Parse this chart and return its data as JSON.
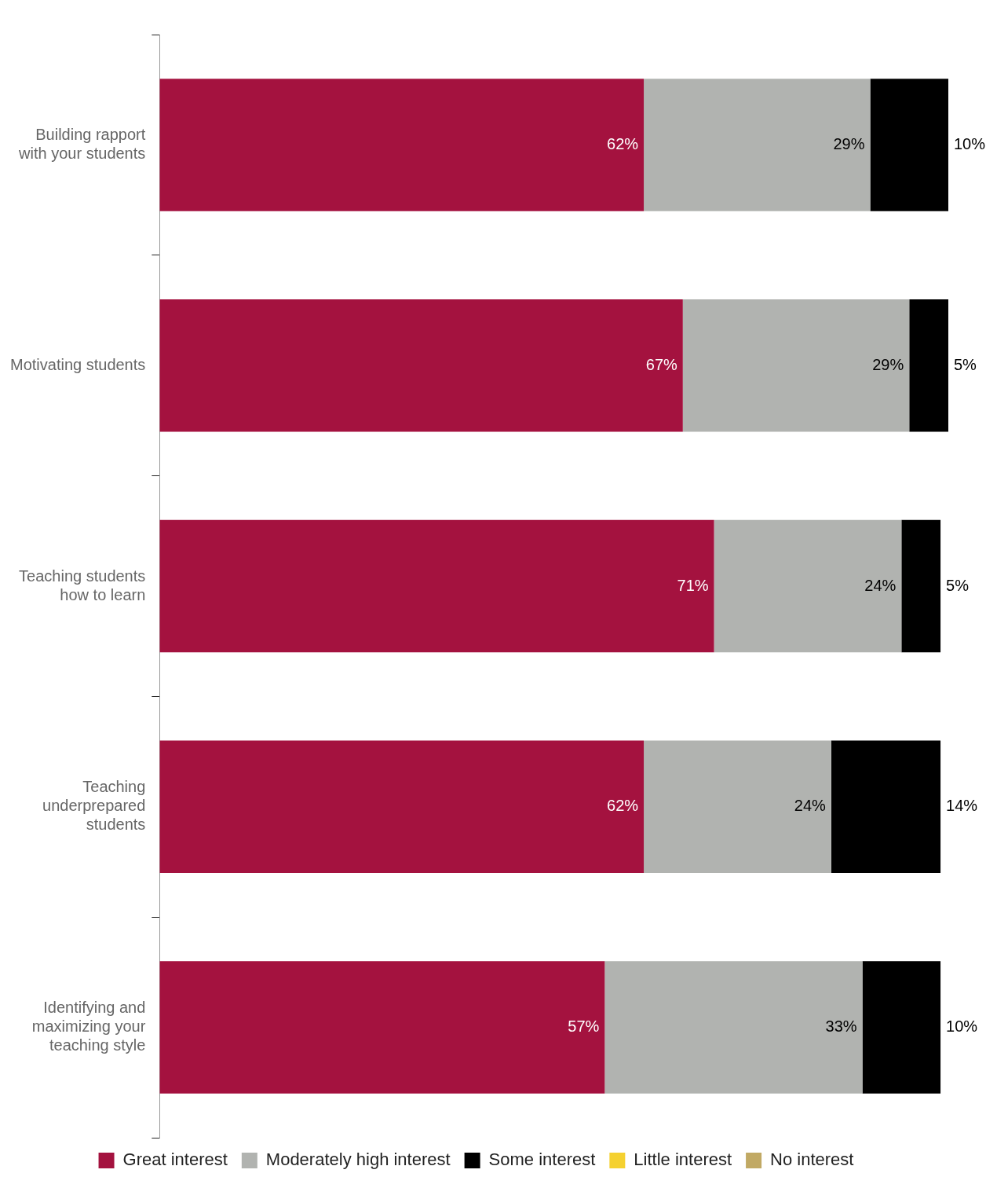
{
  "chart_data": {
    "type": "bar",
    "orientation": "horizontal",
    "stacked": true,
    "legend": "bottom",
    "categories": [
      "Building rapport with your students",
      "Motivating students",
      "Teaching students how to learn",
      "Teaching underprepared students",
      "Identifying and maximizing your teaching style"
    ],
    "series": [
      {
        "name": "Great interest",
        "color": "#a4123f",
        "values": [
          62,
          67,
          71,
          62,
          57
        ],
        "value_labels": [
          "62%",
          "67%",
          "71%",
          "62%",
          "57%"
        ]
      },
      {
        "name": "Moderately high interest",
        "color": "#b1b3b0",
        "values": [
          29,
          29,
          24,
          24,
          33
        ],
        "value_labels": [
          "29%",
          "29%",
          "24%",
          "24%",
          "33%"
        ]
      },
      {
        "name": "Some interest",
        "color": "#000000",
        "values": [
          10,
          5,
          5,
          14,
          10
        ],
        "value_labels": [
          "10%",
          "5%",
          "5%",
          "14%",
          "10%"
        ]
      },
      {
        "name": "Little interest",
        "color": "#f5d130",
        "values": [
          null,
          null,
          null,
          null,
          null
        ]
      },
      {
        "name": "No interest",
        "color": "#c1a964",
        "values": [
          null,
          null,
          null,
          null,
          null
        ]
      }
    ]
  }
}
